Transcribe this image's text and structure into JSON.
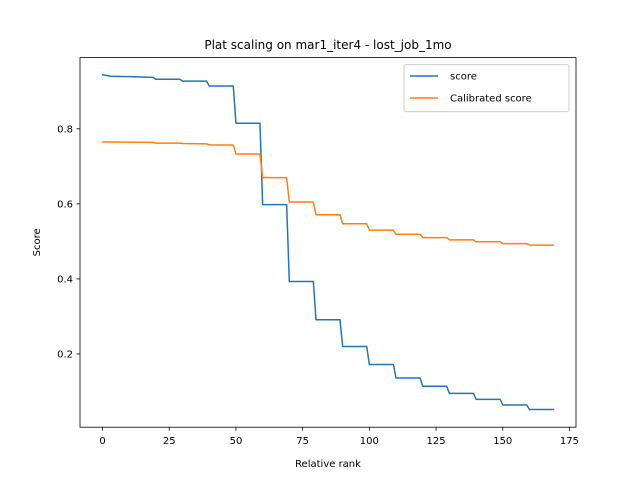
{
  "chart_data": {
    "type": "line",
    "title": "Plat scaling on mar1_iter4 - lost_job_1mo",
    "xlabel": "Relative rank",
    "ylabel": "Score",
    "xlim": [
      -8.45,
      177.45
    ],
    "ylim": [
      0.0048,
      0.9898
    ],
    "xticks": [
      0,
      25,
      50,
      75,
      100,
      125,
      150,
      175
    ],
    "yticks": [
      0.2,
      0.4,
      0.6,
      0.8
    ],
    "xtick_labels": [
      "0",
      "25",
      "50",
      "75",
      "100",
      "125",
      "150",
      "175"
    ],
    "ytick_labels": [
      "0.2",
      "0.4",
      "0.6",
      "0.8"
    ],
    "grid": false,
    "legend_position": "upper right",
    "series": [
      {
        "name": "score",
        "color": "#1f77b4",
        "x": [
          0,
          3,
          9,
          10,
          19,
          20,
          29,
          30,
          39,
          40,
          49,
          50,
          59,
          60,
          69,
          70,
          79,
          80,
          89,
          90,
          99,
          100,
          109,
          110,
          119,
          120,
          129,
          130,
          139,
          140,
          149,
          150,
          159,
          160,
          169
        ],
        "y": [
          0.944,
          0.94,
          0.939,
          0.939,
          0.937,
          0.932,
          0.932,
          0.927,
          0.927,
          0.914,
          0.914,
          0.815,
          0.815,
          0.598,
          0.598,
          0.393,
          0.393,
          0.291,
          0.291,
          0.22,
          0.22,
          0.172,
          0.172,
          0.136,
          0.136,
          0.114,
          0.114,
          0.095,
          0.095,
          0.079,
          0.079,
          0.064,
          0.064,
          0.052,
          0.052
        ]
      },
      {
        "name": "Calibrated score",
        "color": "#ff7f0e",
        "x": [
          0,
          19,
          20,
          29,
          30,
          39,
          40,
          49,
          50,
          59,
          60,
          69,
          70,
          79,
          80,
          89,
          90,
          99,
          100,
          109,
          110,
          119,
          120,
          129,
          130,
          139,
          140,
          149,
          150,
          159,
          160,
          169
        ],
        "y": [
          0.765,
          0.764,
          0.762,
          0.762,
          0.761,
          0.76,
          0.757,
          0.757,
          0.733,
          0.733,
          0.67,
          0.67,
          0.605,
          0.605,
          0.571,
          0.571,
          0.547,
          0.547,
          0.53,
          0.53,
          0.519,
          0.519,
          0.51,
          0.51,
          0.504,
          0.504,
          0.499,
          0.499,
          0.494,
          0.494,
          0.49,
          0.49
        ]
      }
    ]
  }
}
